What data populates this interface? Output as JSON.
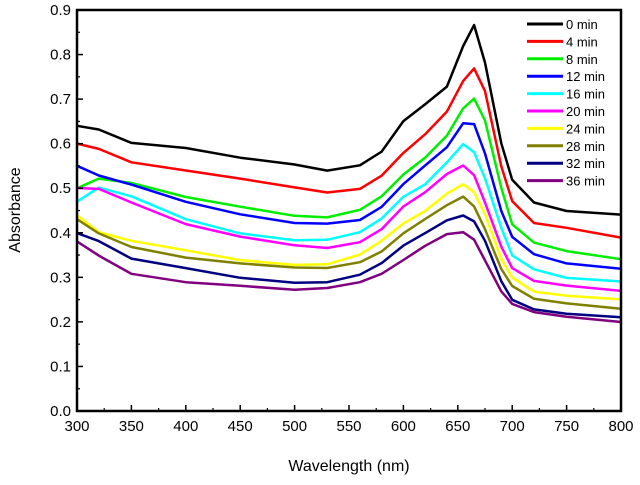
{
  "chart_data": {
    "type": "line",
    "title": "",
    "xlabel": "Wavelength (nm)",
    "ylabel": "Absorbance",
    "xlim": [
      300,
      800
    ],
    "ylim": [
      0.0,
      0.9
    ],
    "xticks": [
      "300",
      "350",
      "400",
      "450",
      "500",
      "550",
      "600",
      "650",
      "700",
      "750",
      "800"
    ],
    "yticks": [
      "0.0",
      "0.1",
      "0.2",
      "0.3",
      "0.4",
      "0.5",
      "0.6",
      "0.7",
      "0.8",
      "0.9"
    ],
    "grid": false,
    "legend_position": "top-right",
    "x": [
      300,
      320,
      350,
      400,
      450,
      500,
      530,
      560,
      580,
      600,
      620,
      640,
      655,
      665,
      675,
      690,
      700,
      720,
      750,
      800
    ],
    "series": [
      {
        "name": "0 min",
        "color": "#000000",
        "values": [
          0.64,
          0.63,
          0.6,
          0.59,
          0.57,
          0.555,
          0.54,
          0.55,
          0.58,
          0.65,
          0.69,
          0.73,
          0.82,
          0.865,
          0.78,
          0.6,
          0.52,
          0.47,
          0.45,
          0.44
        ]
      },
      {
        "name": "4 min",
        "color": "#ff0000",
        "values": [
          0.6,
          0.59,
          0.56,
          0.54,
          0.52,
          0.5,
          0.49,
          0.5,
          0.53,
          0.58,
          0.62,
          0.67,
          0.74,
          0.77,
          0.72,
          0.55,
          0.47,
          0.42,
          0.41,
          0.39
        ]
      },
      {
        "name": "8 min",
        "color": "#00ee00",
        "values": [
          0.5,
          0.52,
          0.51,
          0.48,
          0.46,
          0.44,
          0.435,
          0.45,
          0.48,
          0.53,
          0.57,
          0.62,
          0.68,
          0.7,
          0.65,
          0.5,
          0.42,
          0.38,
          0.36,
          0.34
        ]
      },
      {
        "name": "12 min",
        "color": "#0000ff",
        "values": [
          0.55,
          0.53,
          0.51,
          0.47,
          0.44,
          0.42,
          0.42,
          0.43,
          0.46,
          0.51,
          0.55,
          0.59,
          0.645,
          0.645,
          0.58,
          0.45,
          0.39,
          0.35,
          0.33,
          0.32
        ]
      },
      {
        "name": "16 min",
        "color": "#00ffff",
        "values": [
          0.47,
          0.5,
          0.48,
          0.43,
          0.4,
          0.385,
          0.385,
          0.4,
          0.43,
          0.48,
          0.51,
          0.56,
          0.6,
          0.58,
          0.52,
          0.41,
          0.35,
          0.32,
          0.3,
          0.29
        ]
      },
      {
        "name": "20 min",
        "color": "#ff00ff",
        "values": [
          0.5,
          0.5,
          0.47,
          0.42,
          0.39,
          0.37,
          0.365,
          0.38,
          0.41,
          0.46,
          0.49,
          0.53,
          0.55,
          0.53,
          0.47,
          0.37,
          0.32,
          0.29,
          0.28,
          0.27
        ]
      },
      {
        "name": "24 min",
        "color": "#ffff00",
        "values": [
          0.44,
          0.4,
          0.38,
          0.36,
          0.34,
          0.33,
          0.33,
          0.35,
          0.38,
          0.42,
          0.45,
          0.49,
          0.51,
          0.49,
          0.44,
          0.34,
          0.3,
          0.27,
          0.26,
          0.25
        ]
      },
      {
        "name": "28 min",
        "color": "#808000",
        "values": [
          0.43,
          0.4,
          0.37,
          0.345,
          0.33,
          0.32,
          0.32,
          0.335,
          0.36,
          0.4,
          0.43,
          0.46,
          0.48,
          0.46,
          0.41,
          0.32,
          0.28,
          0.25,
          0.24,
          0.23
        ]
      },
      {
        "name": "32 min",
        "color": "#000080",
        "values": [
          0.4,
          0.38,
          0.34,
          0.32,
          0.3,
          0.29,
          0.29,
          0.305,
          0.33,
          0.37,
          0.4,
          0.43,
          0.44,
          0.425,
          0.38,
          0.29,
          0.25,
          0.23,
          0.22,
          0.21
        ]
      },
      {
        "name": "36 min",
        "color": "#800080",
        "values": [
          0.38,
          0.35,
          0.31,
          0.29,
          0.28,
          0.27,
          0.275,
          0.29,
          0.31,
          0.34,
          0.37,
          0.395,
          0.4,
          0.385,
          0.34,
          0.27,
          0.24,
          0.22,
          0.21,
          0.2
        ]
      }
    ]
  }
}
